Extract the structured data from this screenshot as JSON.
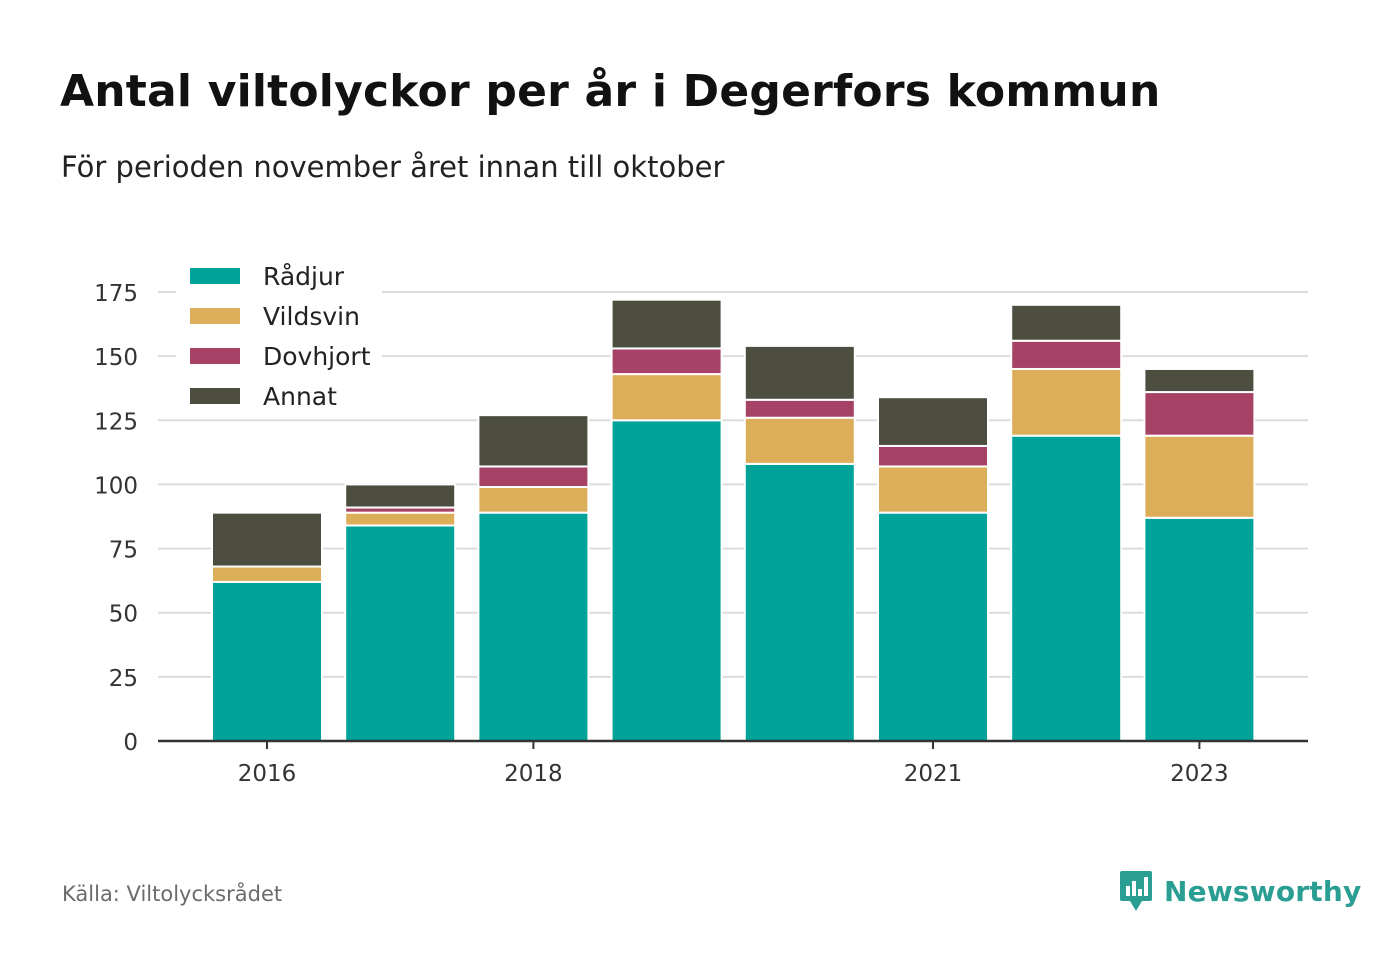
{
  "title": "Antal viltolyckor per år i Degerfors kommun",
  "subtitle": "För perioden november året innan till oktober",
  "source": "Källa: Viltolycksrådet",
  "brand": {
    "name": "Newsworthy",
    "icon": "bar-chart-speech-bubble-icon",
    "color": "#2b9e93"
  },
  "chart_data": {
    "type": "bar",
    "stacked": true,
    "categories": [
      "2016",
      "2017",
      "2018",
      "2019",
      "2020",
      "2021",
      "2022",
      "2023"
    ],
    "x_tick_labels": [
      "2016",
      "",
      "2018",
      "",
      "",
      "2021",
      "",
      "2023"
    ],
    "series": [
      {
        "name": "Rådjur",
        "color": "#00a39a",
        "values": [
          62,
          84,
          89,
          125,
          108,
          89,
          119,
          87
        ]
      },
      {
        "name": "Vildsvin",
        "color": "#dcae5a",
        "values": [
          6,
          5,
          10,
          18,
          18,
          18,
          26,
          32
        ]
      },
      {
        "name": "Dovhjort",
        "color": "#a64266",
        "values": [
          0,
          2,
          8,
          10,
          7,
          8,
          11,
          17
        ]
      },
      {
        "name": "Annat",
        "color": "#4d4e40",
        "values": [
          21,
          9,
          20,
          19,
          21,
          19,
          14,
          9
        ]
      }
    ],
    "ylim": [
      0,
      175
    ],
    "yticks": [
      0,
      25,
      50,
      75,
      100,
      125,
      150,
      175
    ],
    "xlabel": "",
    "ylabel": "",
    "grid": true,
    "legend": "top-left"
  }
}
